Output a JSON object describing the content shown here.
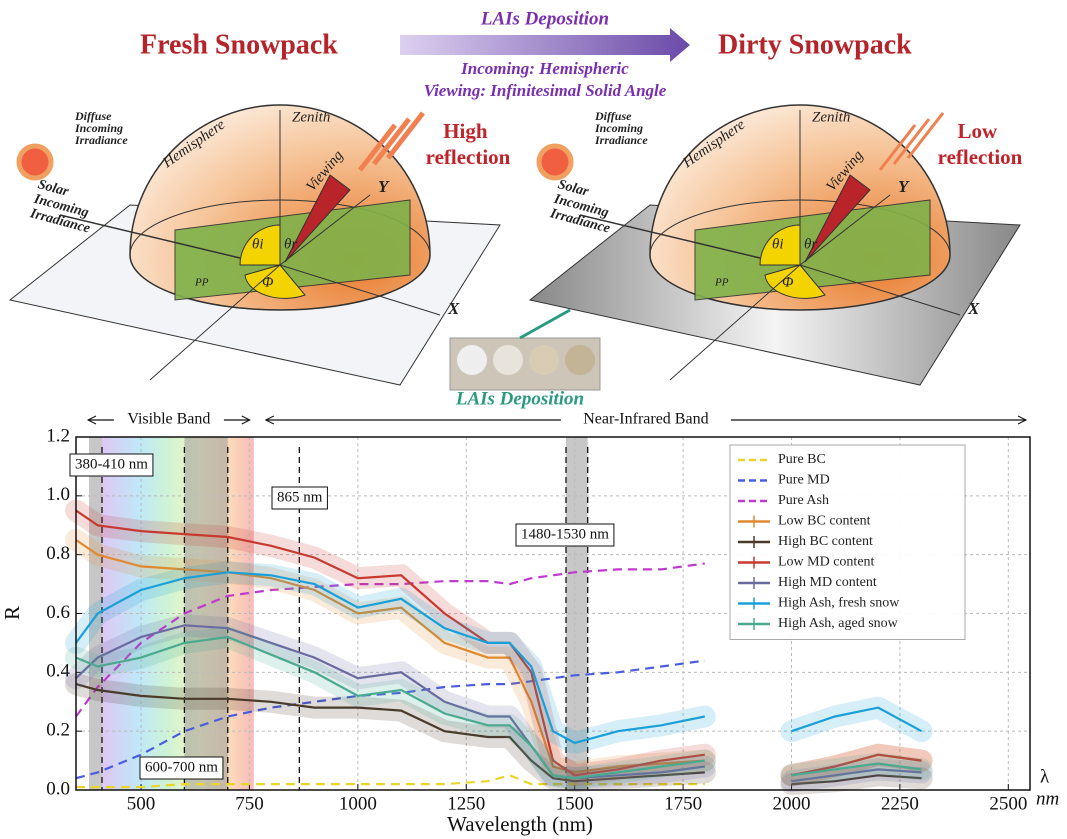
{
  "diagram": {
    "left_title": "Fresh Snowpack",
    "right_title": "Dirty Snowpack",
    "arrow_label": "LAIs Deposition",
    "incoming": "Incoming: Hemispheric",
    "viewing": "Viewing: Infinitesimal Solid Angle",
    "photo_label": "LAIs Deposition",
    "panels": [
      {
        "diffuse": "Diffuse Incoming Irradiance",
        "zenith": "Zenith",
        "hemisphere": "Hemisphere",
        "solar": "Solar Incoming Irradiance",
        "viewing": "Viewing",
        "reflection": "High reflection",
        "y": "Y",
        "x": "X",
        "theta_i": "θi",
        "theta_r": "θr",
        "phi": "Φ",
        "pp": "PP"
      },
      {
        "diffuse": "Diffuse Incoming Irradiance",
        "zenith": "Zenith",
        "hemisphere": "Hemisphere",
        "solar": "Solar Incoming Irradiance",
        "viewing": "Viewing",
        "reflection": "Low reflection",
        "y": "Y",
        "x": "X",
        "theta_i": "θi",
        "theta_r": "θr",
        "phi": "Φ",
        "pp": "PP"
      }
    ]
  },
  "chart_data": {
    "type": "line",
    "x_label": "Wavelength (nm)",
    "y_label": "R",
    "x_unit_symbol": "λ",
    "x_unit": "nm",
    "xlim": [
      350,
      2550
    ],
    "ylim": [
      0,
      1.2
    ],
    "xticks": [
      500,
      750,
      1000,
      1250,
      1500,
      1750,
      2000,
      2250,
      2500
    ],
    "yticks": [
      {
        "value": 0,
        "label": "0.0"
      },
      0.2,
      0.4,
      0.6,
      0.8,
      {
        "value": 1,
        "label": "1.0"
      },
      1.2
    ],
    "grid": true,
    "legend": "upper right",
    "bands": [
      {
        "label": "Visible Band",
        "from": 350,
        "to": 760
      },
      {
        "label": "Near-Infrared Band",
        "from": 760,
        "to": 2550
      }
    ],
    "spans": [
      {
        "from": 410,
        "to": 760,
        "color": "rainbow"
      },
      {
        "from": 380,
        "to": 410,
        "color": "#999999"
      },
      {
        "from": 600,
        "to": 700,
        "color": "#999999"
      },
      {
        "from": 1480,
        "to": 1530,
        "color": "#999999"
      }
    ],
    "vlines": [
      410,
      600,
      700,
      865,
      1480,
      1530
    ],
    "annotations": [
      "380-410 nm",
      "865 nm",
      "1480-1530 nm",
      "600-700 nm"
    ],
    "x": [
      350,
      400,
      500,
      600,
      700,
      800,
      900,
      1000,
      1100,
      1200,
      1300,
      1350,
      1400,
      1450,
      1500,
      1600,
      1700,
      1800,
      1900,
      2000,
      2100,
      2200,
      2300,
      2400,
      2500
    ],
    "series": [
      {
        "name": "Pure BC",
        "color": "#e8d62a",
        "style": "dashed",
        "values": [
          0.01,
          0.01,
          0.01,
          0.02,
          0.02,
          0.02,
          0.02,
          0.02,
          0.02,
          0.02,
          0.03,
          0.05,
          0.02,
          0.02,
          0.02,
          0.02,
          0.02,
          0.02,
          null,
          null,
          null,
          null,
          null,
          null,
          null
        ]
      },
      {
        "name": "Pure MD",
        "color": "#4a5de0",
        "style": "dashed",
        "values": [
          0.04,
          0.06,
          0.12,
          0.2,
          0.25,
          0.28,
          0.3,
          0.32,
          0.33,
          0.35,
          0.36,
          0.36,
          0.37,
          0.38,
          0.39,
          0.4,
          0.42,
          0.44,
          null,
          null,
          null,
          null,
          null,
          null,
          null
        ]
      },
      {
        "name": "Pure Ash",
        "color": "#c03ad0",
        "style": "dashed",
        "values": [
          0.25,
          0.35,
          0.5,
          0.6,
          0.66,
          0.68,
          0.69,
          0.7,
          0.7,
          0.71,
          0.71,
          0.7,
          0.72,
          0.73,
          0.74,
          0.75,
          0.75,
          0.77,
          null,
          null,
          null,
          null,
          null,
          null,
          null
        ]
      },
      {
        "name": "Low BC content",
        "color": "#e08a30",
        "style": "solid",
        "values": [
          0.85,
          0.8,
          0.76,
          0.75,
          0.74,
          0.72,
          0.68,
          0.6,
          0.62,
          0.5,
          0.45,
          0.45,
          0.3,
          0.08,
          0.06,
          0.08,
          0.09,
          0.1,
          null,
          0.05,
          0.08,
          0.12,
          0.1,
          null,
          null
        ]
      },
      {
        "name": "High BC content",
        "color": "#4a3a2a",
        "style": "solid",
        "values": [
          0.36,
          0.34,
          0.32,
          0.31,
          0.31,
          0.3,
          0.28,
          0.28,
          0.27,
          0.2,
          0.18,
          0.18,
          0.1,
          0.04,
          0.03,
          0.04,
          0.05,
          0.06,
          null,
          0.02,
          0.03,
          0.05,
          0.04,
          null,
          null
        ]
      },
      {
        "name": "Low MD content",
        "color": "#c83a30",
        "style": "solid",
        "values": [
          0.95,
          0.9,
          0.88,
          0.87,
          0.86,
          0.83,
          0.79,
          0.72,
          0.73,
          0.6,
          0.5,
          0.5,
          0.4,
          0.1,
          0.05,
          0.07,
          0.1,
          0.12,
          null,
          0.05,
          0.08,
          0.12,
          0.1,
          null,
          null
        ]
      },
      {
        "name": "High MD content",
        "color": "#6a6aa0",
        "style": "solid",
        "values": [
          0.38,
          0.45,
          0.52,
          0.56,
          0.55,
          0.5,
          0.45,
          0.38,
          0.4,
          0.3,
          0.25,
          0.25,
          0.15,
          0.05,
          0.04,
          0.05,
          0.06,
          0.08,
          null,
          0.03,
          0.05,
          0.07,
          0.06,
          null,
          null
        ]
      },
      {
        "name": "High Ash, fresh snow",
        "color": "#1aa0d8",
        "style": "solid",
        "values": [
          0.5,
          0.6,
          0.68,
          0.72,
          0.74,
          0.73,
          0.7,
          0.62,
          0.65,
          0.55,
          0.5,
          0.5,
          0.42,
          0.2,
          0.16,
          0.2,
          0.22,
          0.25,
          null,
          0.2,
          0.25,
          0.28,
          0.2,
          null,
          null
        ]
      },
      {
        "name": "High Ash, aged snow",
        "color": "#4aaa90",
        "style": "solid",
        "values": [
          0.45,
          0.42,
          0.45,
          0.5,
          0.52,
          0.46,
          0.4,
          0.32,
          0.34,
          0.26,
          0.22,
          0.22,
          0.15,
          0.05,
          0.04,
          0.06,
          0.08,
          0.1,
          null,
          0.05,
          0.07,
          0.09,
          0.07,
          null,
          null
        ]
      }
    ]
  }
}
